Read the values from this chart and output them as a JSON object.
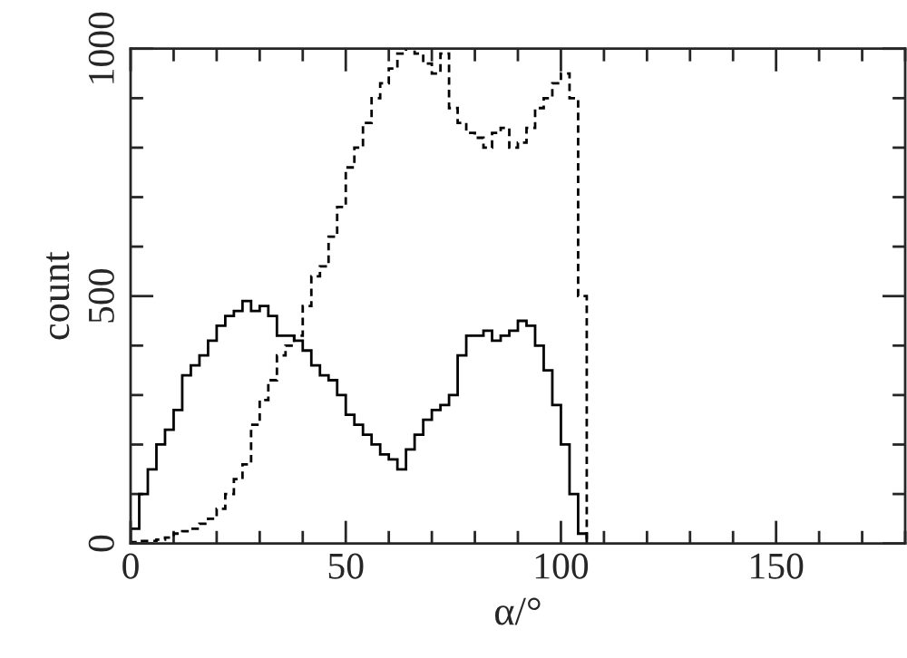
{
  "chart_data": {
    "type": "histogram",
    "xlabel": "α/°",
    "ylabel": "count",
    "bins": [
      0,
      2,
      4,
      6,
      8,
      10,
      12,
      14,
      16,
      18,
      20,
      22,
      24,
      26,
      28,
      30,
      32,
      34,
      36,
      38,
      40,
      42,
      44,
      46,
      48,
      50,
      52,
      54,
      56,
      58,
      60,
      62,
      64,
      66,
      68,
      70,
      72,
      74,
      76,
      78,
      80,
      82,
      84,
      86,
      88,
      90,
      92,
      94,
      96,
      98,
      100,
      102,
      104,
      106
    ],
    "series": [
      {
        "color": "#000000",
        "line_style": "solid",
        "values": [
          30,
          100,
          150,
          200,
          230,
          270,
          340,
          360,
          380,
          410,
          440,
          460,
          470,
          490,
          470,
          480,
          460,
          420,
          420,
          410,
          390,
          360,
          340,
          330,
          300,
          260,
          240,
          220,
          200,
          180,
          170,
          150,
          190,
          220,
          250,
          270,
          280,
          300,
          380,
          420,
          420,
          430,
          410,
          420,
          430,
          450,
          440,
          400,
          350,
          280,
          200,
          100,
          20
        ]
      },
      {
        "color": "#000000",
        "line_style": "dashed",
        "values": [
          3,
          5,
          5,
          8,
          12,
          20,
          25,
          30,
          40,
          50,
          70,
          100,
          130,
          160,
          240,
          290,
          330,
          380,
          400,
          420,
          480,
          540,
          560,
          620,
          680,
          760,
          800,
          850,
          900,
          930,
          960,
          990,
          1000,
          990,
          970,
          950,
          990,
          880,
          850,
          830,
          820,
          800,
          830,
          840,
          800,
          810,
          840,
          880,
          900,
          930,
          950,
          900,
          500
        ]
      }
    ],
    "xlim": [
      0,
      180
    ],
    "xticks": [
      0,
      {
        "value": 10,
        "label": null
      },
      {
        "value": 20,
        "label": null
      },
      {
        "value": 30,
        "label": null
      },
      {
        "value": 40,
        "label": null
      },
      50,
      {
        "value": 60,
        "label": null
      },
      {
        "value": 70,
        "label": null
      },
      {
        "value": 80,
        "label": null
      },
      {
        "value": 90,
        "label": null
      },
      100,
      {
        "value": 110,
        "label": null
      },
      {
        "value": 120,
        "label": null
      },
      {
        "value": 130,
        "label": null
      },
      {
        "value": 140,
        "label": null
      },
      150,
      {
        "value": 160,
        "label": null
      },
      {
        "value": 170,
        "label": null
      },
      {
        "value": 180,
        "label": null
      }
    ],
    "ylim": [
      0,
      1000
    ],
    "yticks": [
      0,
      {
        "value": 100,
        "label": null
      },
      {
        "value": 200,
        "label": null
      },
      {
        "value": 300,
        "label": null
      },
      {
        "value": 400,
        "label": null
      },
      500,
      {
        "value": 600,
        "label": null
      },
      {
        "value": 700,
        "label": null
      },
      {
        "value": 800,
        "label": null
      },
      {
        "value": 900,
        "label": null
      },
      1000
    ],
    "grid": false,
    "legend": false
  }
}
